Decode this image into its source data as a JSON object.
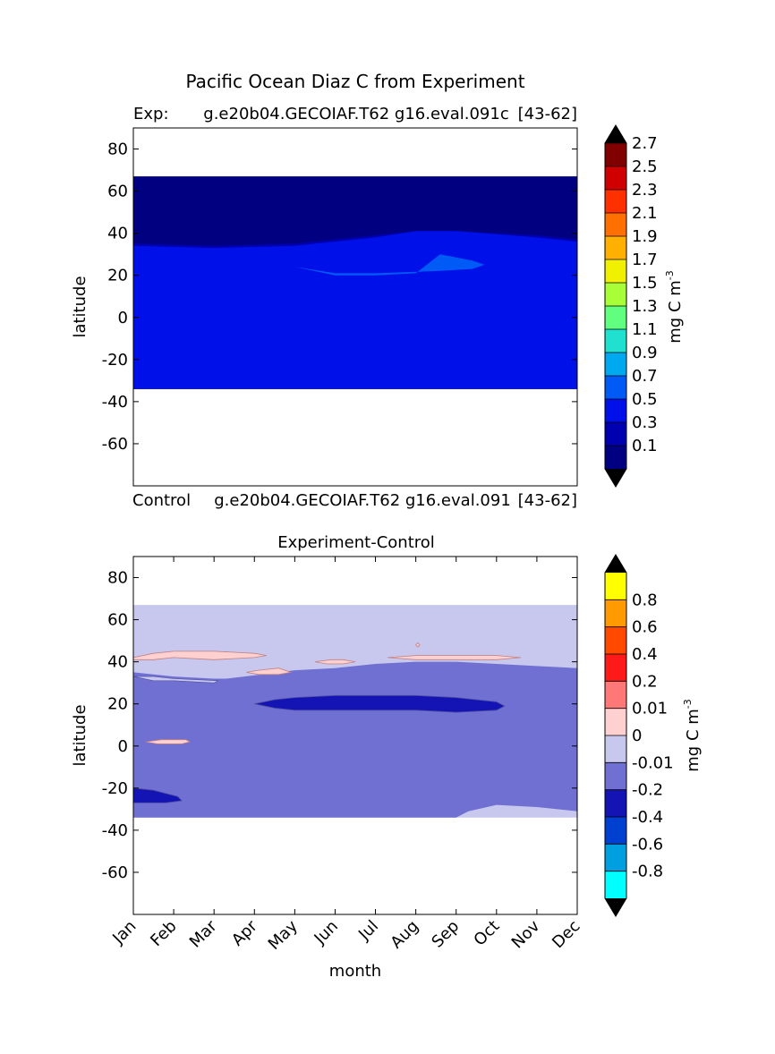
{
  "figure": {
    "title": "Pacific Ocean Diaz C from Experiment"
  },
  "colors": {
    "exp_levels": [
      "#000080",
      "#0000b0",
      "#0010e8",
      "#005af5",
      "#00a8f0",
      "#20e0d0",
      "#60ff80",
      "#a8ff38",
      "#f0f000",
      "#ffb000",
      "#ff7000",
      "#ff3000",
      "#d00000",
      "#800000"
    ],
    "exp_over": "#000000",
    "exp_under": "#000000",
    "diff_levels": [
      "#00ffff",
      "#00a0e0",
      "#0040d0",
      "#1414b4",
      "#7070d2",
      "#c8c8ee",
      "#ffd0d0",
      "#ff7878",
      "#ff1a1a",
      "#ff4a00",
      "#ff9a00",
      "#ffff00"
    ],
    "diff_over": "#000000",
    "diff_under": "#000000",
    "positive_contour": "#c08080",
    "negative_contour": "#5050a0"
  },
  "chart_data": [
    {
      "type": "heatmap",
      "title": "",
      "left_label": "Exp:",
      "center_label": "g.e20b04.GECOIAF.T62 g16.eval.091c",
      "right_label": "[43-62]",
      "ylabel": "latitude",
      "xlabel": "",
      "xlim": [
        0,
        11
      ],
      "ylim": [
        -80,
        90
      ],
      "yticks": [
        80,
        60,
        40,
        20,
        0,
        -20,
        -40,
        -60
      ],
      "data_lat_range": [
        -34,
        67
      ],
      "colorbar": {
        "label": "mg C m",
        "label_superscript": "-3",
        "ticks": [
          "2.7",
          "2.5",
          "2.3",
          "2.1",
          "1.9",
          "1.7",
          "1.5",
          "1.3",
          "1.1",
          "0.9",
          "0.7",
          "0.5",
          "0.3",
          "0.1"
        ],
        "extend": "both"
      },
      "regions": [
        {
          "level": "0.1",
          "description": "northern high latitudes",
          "lower_boundary": {
            "months": [
              0,
              2,
              4,
              6,
              7,
              8,
              10,
              11
            ],
            "lat": [
              37,
              36,
              37,
              41,
              44,
              44,
              41,
              39
            ]
          }
        },
        {
          "level": "0.3",
          "description": "band below 0.1 region",
          "lower_boundary": {
            "months": [
              0,
              2,
              4,
              6,
              7,
              8,
              10,
              11
            ],
            "lat": [
              35,
              34,
              35,
              39,
              41,
              41,
              39,
              37
            ]
          }
        },
        {
          "level": "0.5",
          "description": "main basin -34 to ~35"
        },
        {
          "level": "0.7",
          "description": "summer subtropical maximum",
          "patch": {
            "months": [
              4,
              5,
              6,
              7,
              7.6,
              8.4,
              8.7,
              8.4,
              7.5,
              6,
              5
            ],
            "lat": [
              24,
              20,
              20,
              21,
              30,
              27,
              25,
              23,
              22,
              21,
              21
            ]
          }
        }
      ]
    },
    {
      "type": "heatmap",
      "title": "Experiment-Control",
      "left_label": "Control",
      "center_label": "g.e20b04.GECOIAF.T62 g16.eval.091",
      "right_label": "[43-62]",
      "ylabel": "latitude",
      "xlabel": "month",
      "xlim": [
        0,
        11
      ],
      "ylim": [
        -80,
        90
      ],
      "yticks": [
        80,
        60,
        40,
        20,
        0,
        -20,
        -40,
        -60
      ],
      "xticks": [
        "Jan",
        "Feb",
        "Mar",
        "Apr",
        "May",
        "Jun",
        "Jul",
        "Aug",
        "Sep",
        "Oct",
        "Nov",
        "Dec"
      ],
      "data_lat_range": [
        -34,
        67
      ],
      "colorbar": {
        "label": "mg C m",
        "label_superscript": "-3",
        "ticks": [
          "0.8",
          "0.6",
          "0.4",
          "0.2",
          "0.01",
          "0",
          "-0.01",
          "-0.2",
          "-0.4",
          "-0.6",
          "-0.8"
        ],
        "extend": "both"
      },
      "regions": [
        {
          "level": "0 to -0.01",
          "description": "northern band and southeastern corner"
        },
        {
          "level": "-0.01 to -0.2",
          "description": "main basin"
        },
        {
          "level": "-0.2 to -0.4",
          "description": "subtropical minimum, May-Oct near 15-23N; small patch Jan-Feb near -20 to -27"
        },
        {
          "level": "0 to 0.01",
          "description": "small positive patches near 40-45N"
        }
      ]
    }
  ]
}
